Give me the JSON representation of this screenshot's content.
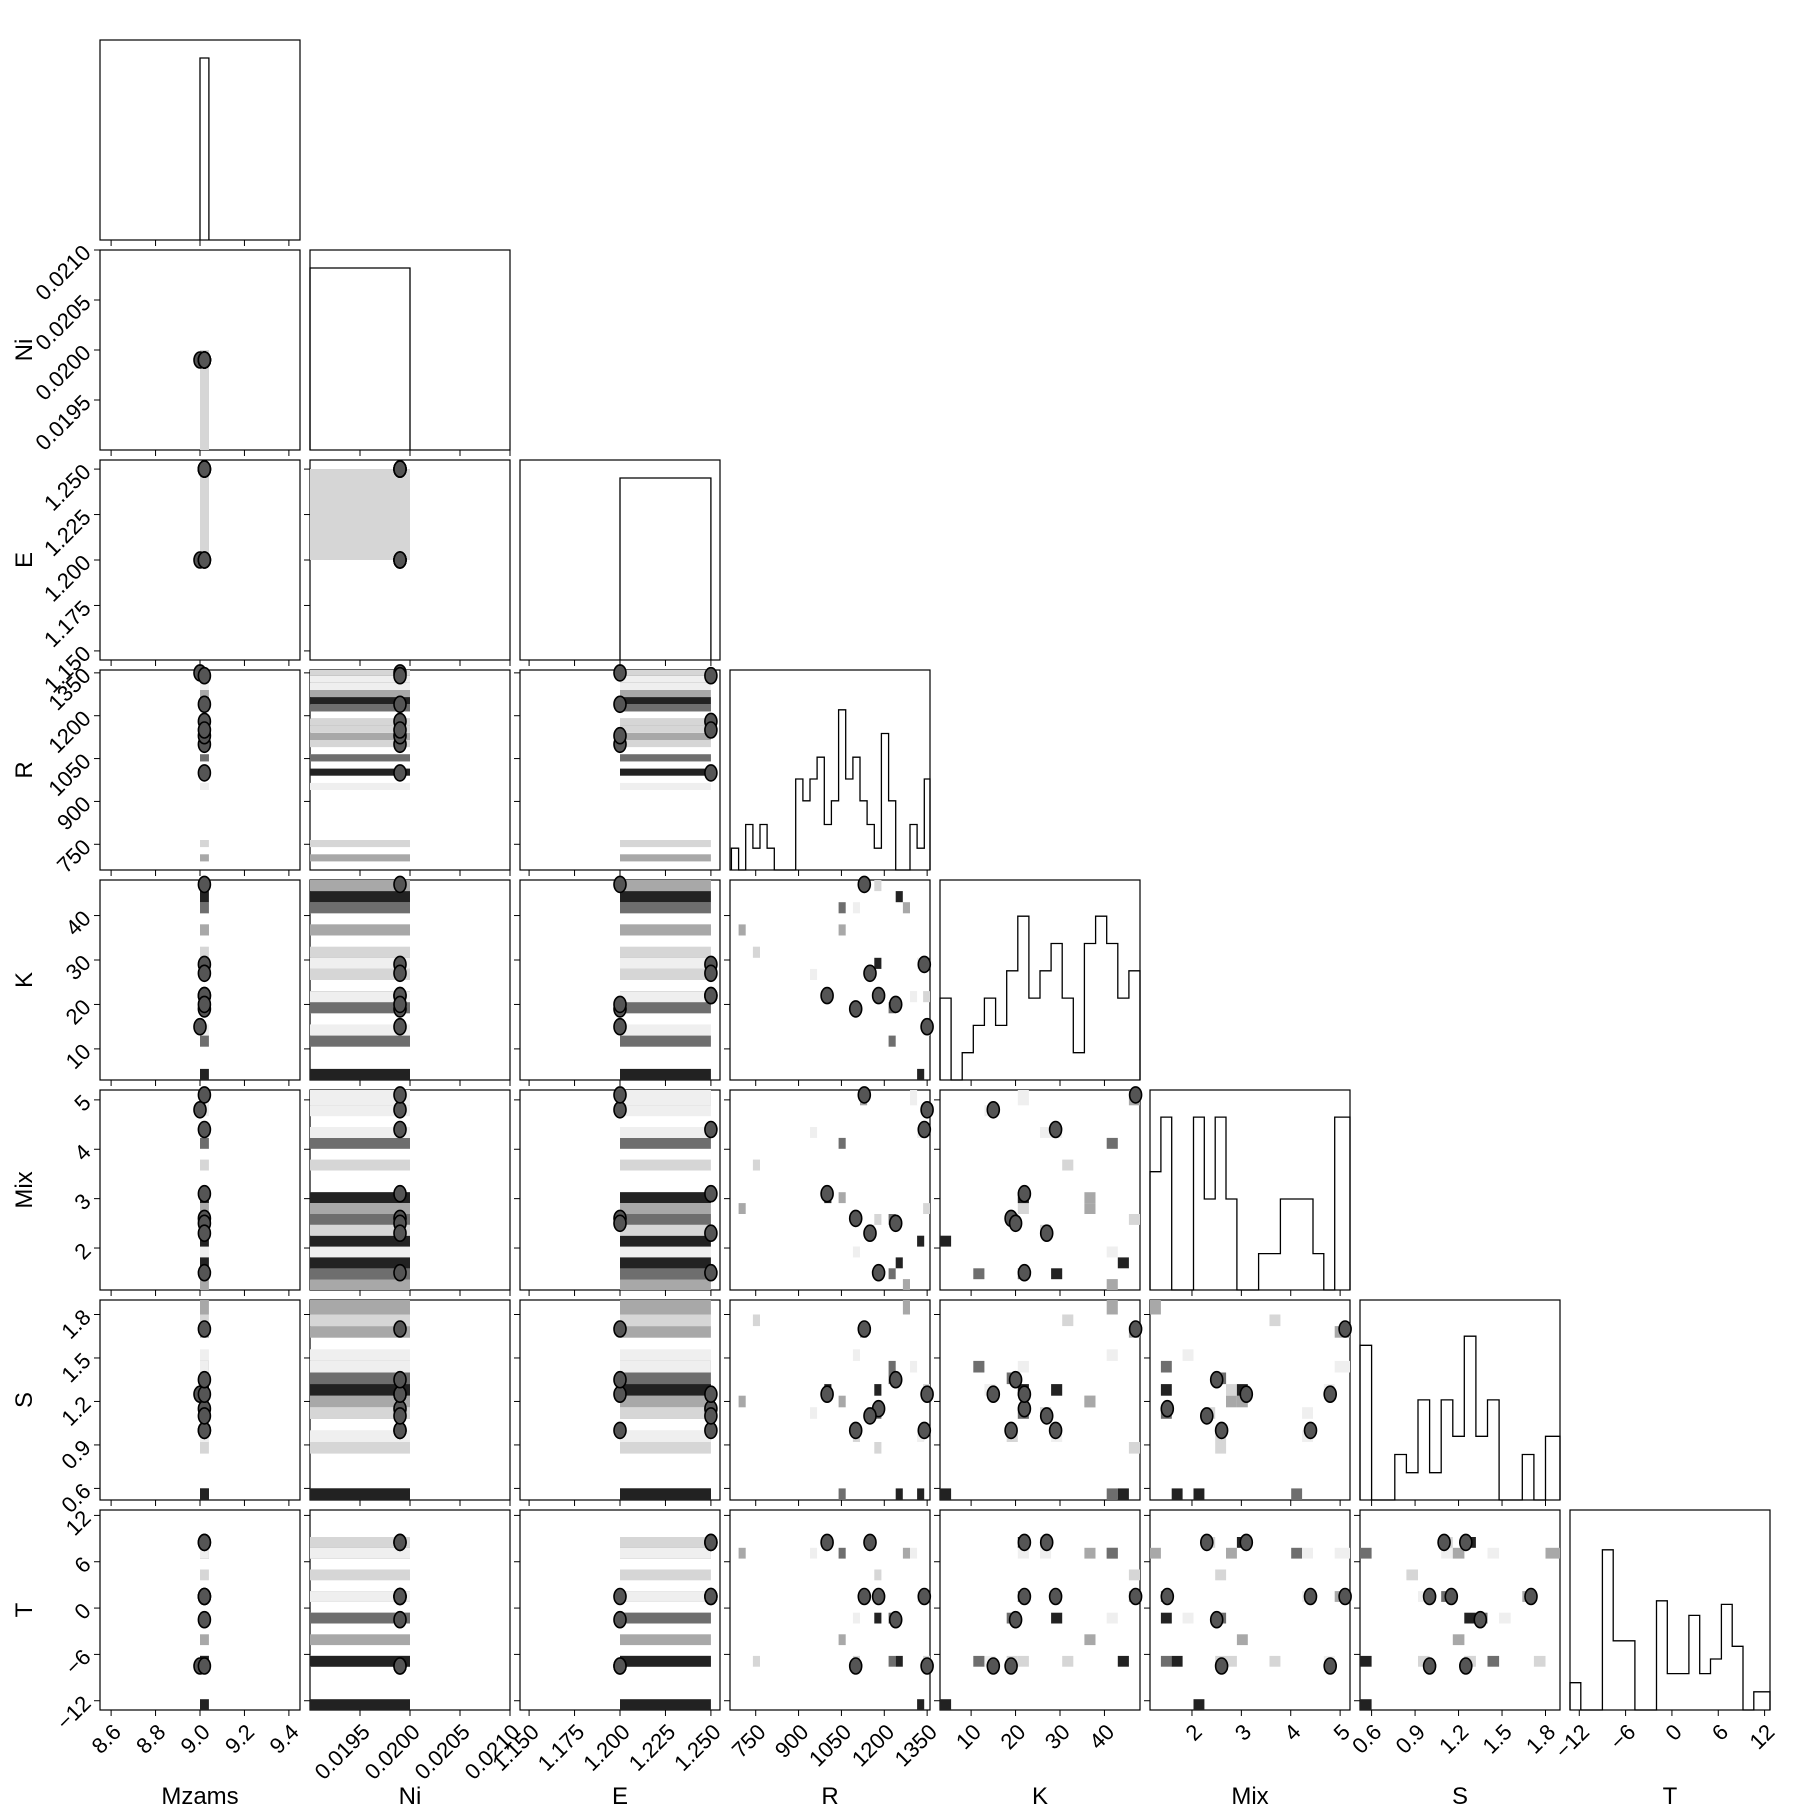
{
  "chart_data": {
    "type": "corner",
    "parameters": [
      "Mzams",
      "Ni",
      "E",
      "R",
      "K",
      "Mix",
      "S",
      "T"
    ],
    "axis_labels": [
      "Mzams",
      "Ni",
      "E",
      "R",
      "K",
      "Mix",
      "S",
      "T"
    ],
    "ranges": {
      "Mzams": [
        8.55,
        9.45
      ],
      "Ni": [
        0.019,
        0.021
      ],
      "E": [
        1.145,
        1.255
      ],
      "R": [
        660,
        1360
      ],
      "K": [
        3,
        48
      ],
      "Mix": [
        1.15,
        5.2
      ],
      "S": [
        0.52,
        1.9
      ],
      "T": [
        -13.2,
        12.7
      ]
    },
    "ticks": {
      "Mzams": [
        8.6,
        8.8,
        9.0,
        9.2,
        9.4
      ],
      "Ni": [
        0.0195,
        0.02,
        0.0205,
        0.021
      ],
      "E": [
        1.15,
        1.175,
        1.2,
        1.225,
        1.25
      ],
      "R": [
        750,
        900,
        1050,
        1200,
        1350
      ],
      "K": [
        10,
        20,
        30,
        40
      ],
      "Mix": [
        2,
        3,
        4,
        5
      ],
      "S": [
        0.6,
        0.9,
        1.2,
        1.5,
        1.8
      ],
      "T": [
        -12,
        -6,
        0,
        6,
        12
      ]
    },
    "tick_labels": {
      "Mzams": [
        "8.6",
        "8.8",
        "9.0",
        "9.2",
        "9.4"
      ],
      "Ni": [
        "0.0195",
        "0.0200",
        "0.0205",
        "0.0210"
      ],
      "E": [
        "1.150",
        "1.175",
        "1.200",
        "1.225",
        "1.250"
      ],
      "R": [
        "750",
        "900",
        "1050",
        "1200",
        "1350"
      ],
      "K": [
        "10",
        "20",
        "30",
        "40"
      ],
      "Mix": [
        "2",
        "3",
        "4",
        "5"
      ],
      "S": [
        "0.6",
        "0.9",
        "1.2",
        "1.5",
        "1.8"
      ],
      "T": [
        "−12",
        "−6",
        "0",
        "6",
        "12"
      ]
    },
    "marginals": {
      "Mzams": {
        "bins": [
          9.0,
          9.04
        ],
        "counts": [
          1.0
        ]
      },
      "Ni": {
        "bins": [
          0.019,
          0.02
        ],
        "counts": [
          1.0
        ]
      },
      "E": {
        "bins": [
          1.2,
          1.25
        ],
        "counts": [
          1.0
        ]
      },
      "R": {
        "bins": [
          665,
          690,
          715,
          740,
          765,
          790,
          815,
          840,
          865,
          890,
          915,
          940,
          965,
          990,
          1015,
          1040,
          1065,
          1090,
          1115,
          1140,
          1165,
          1190,
          1215,
          1240,
          1265,
          1290,
          1315,
          1340,
          1360
        ],
        "counts": [
          0.12,
          0.0,
          0.25,
          0.12,
          0.25,
          0.12,
          0.0,
          0.0,
          0.0,
          0.5,
          0.38,
          0.5,
          0.62,
          0.25,
          0.38,
          0.88,
          0.5,
          0.62,
          0.38,
          0.25,
          0.12,
          0.75,
          0.38,
          0.0,
          0.0,
          0.25,
          0.12,
          0.5
        ]
      },
      "K": {
        "bins": [
          3,
          5.5,
          8,
          10.5,
          13,
          15.5,
          18,
          20.5,
          23,
          25.5,
          28,
          30.5,
          33,
          35.5,
          38,
          40.5,
          43,
          45.5,
          48
        ],
        "counts": [
          0.45,
          0.0,
          0.15,
          0.3,
          0.45,
          0.3,
          0.6,
          0.9,
          0.45,
          0.6,
          0.75,
          0.45,
          0.15,
          0.75,
          0.9,
          0.75,
          0.45,
          0.6
        ]
      },
      "Mix": {
        "bins": [
          1.15,
          1.37,
          1.59,
          1.81,
          2.03,
          2.25,
          2.47,
          2.69,
          2.91,
          3.13,
          3.35,
          3.57,
          3.79,
          4.01,
          4.23,
          4.45,
          4.67,
          4.89,
          5.2
        ],
        "counts": [
          0.65,
          0.95,
          0.0,
          0.0,
          0.95,
          0.5,
          0.95,
          0.5,
          0.0,
          0.0,
          0.2,
          0.2,
          0.5,
          0.5,
          0.5,
          0.2,
          0.0,
          0.95
        ]
      },
      "S": {
        "bins": [
          0.52,
          0.6,
          0.68,
          0.76,
          0.84,
          0.92,
          1.0,
          1.08,
          1.16,
          1.24,
          1.32,
          1.4,
          1.48,
          1.56,
          1.64,
          1.72,
          1.8,
          1.9
        ],
        "counts": [
          0.85,
          0.0,
          0.0,
          0.25,
          0.15,
          0.55,
          0.15,
          0.55,
          0.35,
          0.9,
          0.35,
          0.55,
          0.0,
          0.0,
          0.25,
          0.0,
          0.35
        ]
      },
      "T": {
        "bins": [
          -13.2,
          -11.8,
          -10.4,
          -9.0,
          -7.6,
          -6.2,
          -4.8,
          -3.4,
          -2.0,
          -0.6,
          0.8,
          2.2,
          3.6,
          5.0,
          6.4,
          7.8,
          9.2,
          10.6,
          12.7
        ],
        "counts": [
          0.15,
          0.0,
          0.0,
          0.88,
          0.38,
          0.38,
          0.0,
          0.0,
          0.6,
          0.2,
          0.2,
          0.52,
          0.2,
          0.28,
          0.58,
          0.35,
          0.0,
          0.1
        ]
      }
    },
    "joint_points": {
      "Mzams": [
        9.0,
        9.0,
        9.02,
        9.02,
        9.02,
        9.02,
        9.02,
        9.02,
        9.02,
        9.02,
        9.02,
        9.02,
        9.02,
        9.02,
        9.02,
        9.02,
        9.02,
        9.02,
        9.02,
        9.02,
        9.02,
        9.02
      ],
      "Ni": [
        0.0199,
        0.0199,
        0.0199,
        0.0199,
        0.0199,
        0.0199,
        0.0199,
        0.0199,
        0.0199,
        0.0199,
        0.0199,
        0.0199,
        0.0199,
        0.0199,
        0.0199,
        0.0199,
        0.0199,
        0.0199,
        0.0199,
        0.0199,
        0.0199,
        0.0199
      ],
      "E": [
        1.2,
        1.25,
        1.2,
        1.25,
        1.2,
        1.25,
        1.2,
        1.25,
        1.2,
        1.25,
        1.2,
        1.25,
        1.2,
        1.25,
        1.2,
        1.25,
        1.2,
        1.25,
        1.2,
        1.25,
        1.2,
        1.25
      ],
      "R": [
        1350,
        1350,
        1280,
        1180,
        1180,
        1100,
        1100,
        1050,
        1050,
        1000,
        960,
        1190,
        1130,
        1230,
        1320,
        1340,
        750,
        700,
        1240,
        1260,
        1300,
        1150
      ],
      "K": [
        15,
        21,
        41,
        22,
        30,
        43,
        19,
        36,
        41,
        22,
        26,
        46,
        47,
        12,
        3,
        29,
        31,
        37,
        20,
        45,
        22,
        27
      ],
      "Mix": [
        4.8,
        2.8,
        1.2,
        1.5,
        1.5,
        2.0,
        2.6,
        3.0,
        4.1,
        3.1,
        4.4,
        2.5,
        5.1,
        1.4,
        2.2,
        4.4,
        3.6,
        2.9,
        2.5,
        1.6,
        5.0,
        2.3
      ],
      "S": [
        1.25,
        1.25,
        1.9,
        1.15,
        1.3,
        1.5,
        1.0,
        1.2,
        0.55,
        1.25,
        1.1,
        0.85,
        1.7,
        1.45,
        0.55,
        1.0,
        1.8,
        1.2,
        1.35,
        0.55,
        1.45,
        1.1
      ],
      "T": [
        -7.5,
        -7.5,
        7.5,
        1.5,
        -1.0,
        -1.0,
        -7.5,
        -4.0,
        6.5,
        8.5,
        6.5,
        4.0,
        1.5,
        -7.5,
        -12.5,
        1.5,
        -7.5,
        7.5,
        -1.5,
        -7.5,
        6.5,
        8.5
      ]
    },
    "grid": false,
    "legend": "none"
  }
}
